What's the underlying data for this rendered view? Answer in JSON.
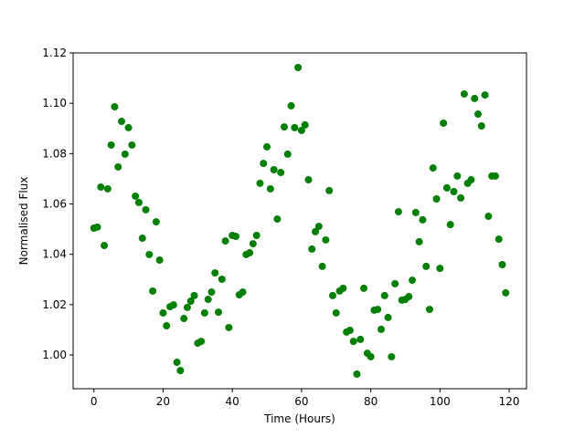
{
  "chart_data": {
    "type": "scatter",
    "xlabel": "Time (Hours)",
    "ylabel": "Normalised Flux",
    "xlim": [
      -6,
      125
    ],
    "ylim": [
      0.9866,
      1.12
    ],
    "xticks": [
      0,
      20,
      40,
      60,
      80,
      100,
      120
    ],
    "yticks": [
      {
        "value": 1.0,
        "label": "1.00"
      },
      1.02,
      1.04,
      1.06,
      1.08,
      {
        "value": 1.1,
        "label": "1.10"
      },
      1.12
    ],
    "series": [
      {
        "color": "#008000",
        "x": [
          0,
          1,
          2,
          3,
          4,
          5,
          6,
          7,
          8,
          9,
          10,
          11,
          12,
          13,
          14,
          15,
          16,
          17,
          18,
          19,
          20,
          21,
          22,
          23,
          24,
          25,
          26,
          27,
          28,
          29,
          30,
          31,
          32,
          33,
          34,
          35,
          36,
          37,
          38,
          39,
          40,
          41,
          42,
          43,
          44,
          45,
          46,
          47,
          48,
          49,
          50,
          51,
          52,
          53,
          54,
          55,
          56,
          57,
          58,
          59,
          60,
          61,
          62,
          63,
          64,
          65,
          66,
          67,
          68,
          69,
          70,
          71,
          72,
          73,
          74,
          75,
          76,
          77,
          78,
          79,
          80,
          81,
          82,
          83,
          84,
          85,
          86,
          87,
          88,
          89,
          90,
          91,
          92,
          93,
          94,
          95,
          96,
          97,
          98,
          99,
          100,
          101,
          102,
          103,
          104,
          105,
          106,
          107,
          108,
          109,
          110,
          111,
          112,
          113,
          114,
          115,
          116,
          117,
          118,
          119
        ],
        "values": [
          1.0504,
          1.0508,
          1.0667,
          1.0435,
          1.066,
          1.0834,
          1.0986,
          1.0747,
          1.0928,
          1.0798,
          1.0903,
          1.0834,
          1.0631,
          1.0606,
          1.0464,
          1.0577,
          1.0399,
          1.0254,
          1.0529,
          1.0377,
          1.0167,
          1.0116,
          1.0192,
          1.0199,
          0.9971,
          0.9938,
          1.0145,
          1.0189,
          1.0214,
          1.0236,
          1.0047,
          1.0054,
          1.0167,
          1.0221,
          1.025,
          1.0326,
          1.017,
          1.0301,
          1.0453,
          1.0109,
          1.0475,
          1.0471,
          1.0239,
          1.025,
          1.0399,
          1.0406,
          1.0442,
          1.0475,
          1.0682,
          1.0761,
          1.0827,
          1.066,
          1.0736,
          1.054,
          1.0725,
          1.0906,
          1.0798,
          1.099,
          1.0903,
          1.1142,
          1.0892,
          1.0914,
          1.0696,
          1.0421,
          1.049,
          1.0511,
          1.0352,
          1.0457,
          1.0653,
          1.0236,
          1.0167,
          1.0254,
          1.0265,
          1.0091,
          1.0098,
          1.0054,
          0.9924,
          1.0062,
          1.0265,
          1.0007,
          0.9993,
          1.0178,
          1.0181,
          1.0102,
          1.0236,
          1.0149,
          0.9993,
          1.0283,
          1.0569,
          1.0218,
          1.0221,
          1.0232,
          1.0297,
          1.0566,
          1.045,
          1.0537,
          1.0352,
          1.0181,
          1.0743,
          1.062,
          1.0344,
          1.0921,
          1.0664,
          1.0518,
          1.0649,
          1.0711,
          1.0624,
          1.1037,
          1.0682,
          1.0696,
          1.1019,
          1.0957,
          1.091,
          1.1033,
          1.0551,
          1.0711,
          1.0711,
          1.046,
          1.0359,
          1.0247
        ]
      }
    ]
  }
}
